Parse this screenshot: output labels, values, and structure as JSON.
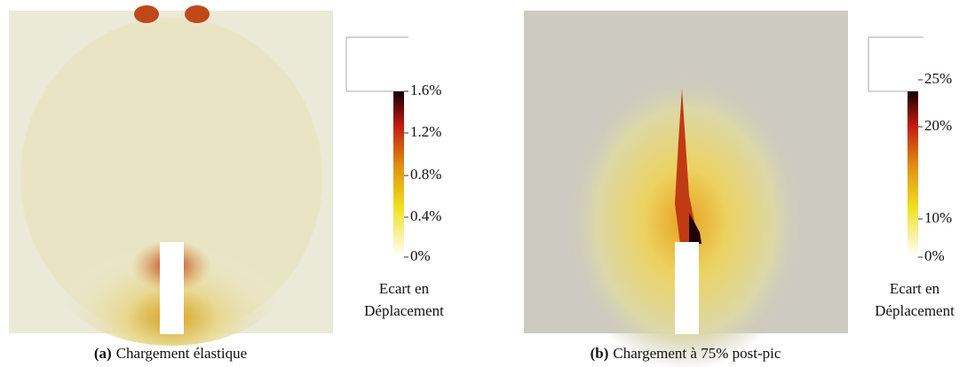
{
  "panels": [
    {
      "label": "(a)",
      "caption": "Chargement élastique",
      "colorbar": {
        "ticks": [
          "1.6%",
          "1.2%",
          "0.8%",
          "0.4%",
          "0%"
        ],
        "title": [
          "Ecart en",
          "Déplacement"
        ]
      }
    },
    {
      "label": "(b)",
      "caption": "Chargement à 75% post-pic",
      "colorbar": {
        "ticks": [
          "25%",
          "20%",
          "10%",
          "0%"
        ],
        "title": [
          "Ecart en",
          "Déplacement"
        ]
      }
    }
  ]
}
